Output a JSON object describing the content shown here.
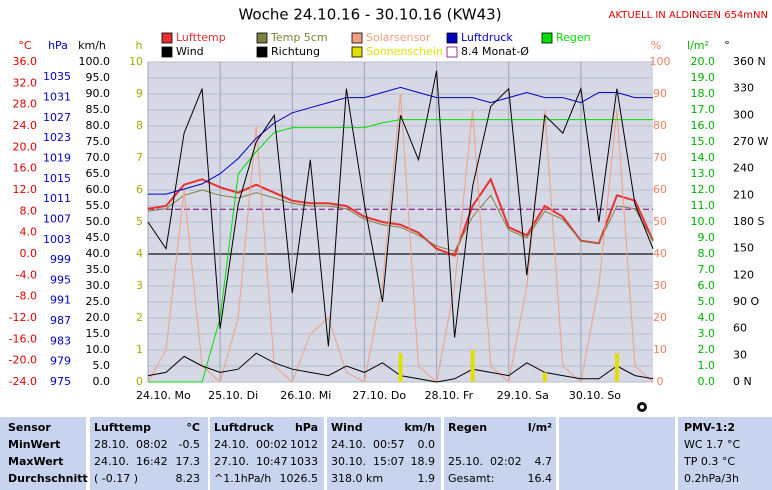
{
  "chart_data": {
    "type": "line",
    "title": "Woche 24.10.16 - 30.10.16 (KW43)",
    "subtitle": "AKTUELL IN ALDINGEN 654mNN",
    "grid": true,
    "xlim": [
      0,
      168
    ],
    "xticks": [
      {
        "value": 0,
        "label": "24.10.  Mo"
      },
      {
        "value": 24,
        "label": "25.10.  Di"
      },
      {
        "value": 48,
        "label": "26.10.  Mi"
      },
      {
        "value": 72,
        "label": "27.10.  Do"
      },
      {
        "value": 96,
        "label": "28.10.  Fr"
      },
      {
        "value": 120,
        "label": "29.10.  Sa"
      },
      {
        "value": 144,
        "label": "30.10.  So"
      }
    ],
    "axes": [
      {
        "unit": "°C",
        "color": "#e00000",
        "ylim": [
          -24,
          36
        ],
        "yticks": [
          {
            "value": 36,
            "label": "36.0"
          },
          {
            "value": 32,
            "label": "32.0"
          },
          {
            "value": 28,
            "label": "28.0"
          },
          {
            "value": 24,
            "label": "24.0"
          },
          {
            "value": 20,
            "label": "20.0"
          },
          {
            "value": 16,
            "label": "16.0"
          },
          {
            "value": 12,
            "label": "12.0"
          },
          {
            "value": 8,
            "label": "8.0"
          },
          {
            "value": 4,
            "label": "4.0"
          },
          {
            "value": 0,
            "label": "0.0"
          },
          {
            "value": -4,
            "label": "-4.0"
          },
          {
            "value": -8,
            "label": "-8.0"
          },
          {
            "value": -12,
            "label": "-12.0"
          },
          {
            "value": -16,
            "label": "-16.0"
          },
          {
            "value": -20,
            "label": "-20.0"
          },
          {
            "value": -24,
            "label": "-24.0"
          }
        ]
      },
      {
        "unit": "hPa",
        "color": "#0000c0",
        "ylim": [
          975,
          1038
        ],
        "yticks": [
          1035,
          1031,
          1027,
          1023,
          1019,
          1015,
          1011,
          1007,
          1003,
          999,
          995,
          991,
          987,
          983,
          979,
          975
        ]
      },
      {
        "unit": "km/h",
        "color": "#000000",
        "ylim": [
          0,
          100
        ],
        "yticks": [
          {
            "value": 100,
            "label": "100.0"
          },
          {
            "value": 95,
            "label": "95.0"
          },
          {
            "value": 90,
            "label": "90.0"
          },
          {
            "value": 85,
            "label": "85.0"
          },
          {
            "value": 80,
            "label": "80.0"
          },
          {
            "value": 75,
            "label": "75.0"
          },
          {
            "value": 70,
            "label": "70.0"
          },
          {
            "value": 65,
            "label": "65.0"
          },
          {
            "value": 60,
            "label": "60.0"
          },
          {
            "value": 55,
            "label": "55.0"
          },
          {
            "value": 50,
            "label": "50.0"
          },
          {
            "value": 45,
            "label": "45.0"
          },
          {
            "value": 40,
            "label": "40.0"
          },
          {
            "value": 35,
            "label": "35.0"
          },
          {
            "value": 30,
            "label": "30.0"
          },
          {
            "value": 25,
            "label": "25.0"
          },
          {
            "value": 20,
            "label": "20.0"
          },
          {
            "value": 15,
            "label": "15.0"
          },
          {
            "value": 10,
            "label": "10.0"
          },
          {
            "value": 5,
            "label": "5.0"
          },
          {
            "value": 0,
            "label": "0.0"
          }
        ]
      },
      {
        "unit": "h",
        "color": "#a8a800",
        "ylim": [
          0,
          10
        ],
        "yticks": [
          10,
          9,
          8,
          7,
          6,
          5,
          4,
          3,
          2,
          1,
          0
        ]
      },
      {
        "unit": "%",
        "color": "#f08060",
        "ylim": [
          0,
          100
        ],
        "yticks": [
          100,
          90,
          80,
          70,
          60,
          50,
          40,
          30,
          20,
          10,
          0
        ]
      },
      {
        "unit": "l/m²",
        "color": "#00b000",
        "ylim": [
          0,
          20
        ],
        "yticks": [
          {
            "value": 20,
            "label": "20.0"
          },
          {
            "value": 19,
            "label": "19.0"
          },
          {
            "value": 18,
            "label": "18.0"
          },
          {
            "value": 17,
            "label": "17.0"
          },
          {
            "value": 16,
            "label": "16.0"
          },
          {
            "value": 15,
            "label": "15.0"
          },
          {
            "value": 14,
            "label": "14.0"
          },
          {
            "value": 13,
            "label": "13.0"
          },
          {
            "value": 12,
            "label": "12.0"
          },
          {
            "value": 11,
            "label": "11.0"
          },
          {
            "value": 10,
            "label": "10.0"
          },
          {
            "value": 9,
            "label": "9.0"
          },
          {
            "value": 8,
            "label": "8.0"
          },
          {
            "value": 7,
            "label": "7.0"
          },
          {
            "value": 6,
            "label": "6.0"
          },
          {
            "value": 5,
            "label": "5.0"
          },
          {
            "value": 4,
            "label": "4.0"
          },
          {
            "value": 3,
            "label": "3.0"
          },
          {
            "value": 2,
            "label": "2.0"
          },
          {
            "value": 1,
            "label": "1.0"
          },
          {
            "value": 0,
            "label": "0.0"
          }
        ]
      },
      {
        "unit": "°",
        "color": "#000000",
        "ylim": [
          0,
          360
        ],
        "yticks": [
          {
            "value": 360,
            "label": "360 N"
          },
          330,
          300,
          {
            "value": 270,
            "label": "270 W"
          },
          240,
          210,
          {
            "value": 180,
            "label": "180 S"
          },
          150,
          120,
          {
            "value": 90,
            "label": "90 O"
          },
          60,
          30,
          {
            "value": 0,
            "label": "0 N"
          }
        ]
      }
    ],
    "x": [
      0,
      6,
      12,
      18,
      24,
      30,
      36,
      42,
      48,
      54,
      60,
      66,
      72,
      78,
      84,
      90,
      96,
      102,
      108,
      114,
      120,
      126,
      132,
      138,
      144,
      150,
      156,
      162,
      168
    ],
    "series": [
      {
        "name": "Lufttemp",
        "color": "#e83030",
        "axis": "°C",
        "values": [
          8.5,
          9,
          13,
          14,
          12.5,
          11.5,
          13,
          11.5,
          10,
          9.5,
          9.5,
          9,
          7,
          6,
          5.5,
          4,
          1,
          -0.3,
          9,
          14,
          5,
          3.5,
          9,
          7,
          2.5,
          2,
          11,
          10,
          2.5
        ]
      },
      {
        "name": "Temp 5cm",
        "color": "#808040",
        "axis": "°C",
        "values": [
          8,
          8.5,
          11,
          12,
          11,
          10.5,
          11.5,
          10.5,
          9.5,
          9,
          9,
          8.5,
          6.5,
          5.5,
          5,
          3.5,
          1.5,
          0.5,
          7,
          11,
          4.5,
          3,
          8,
          6.5,
          2.5,
          2,
          9,
          8.5,
          2.5
        ]
      },
      {
        "name": "Solarsensor",
        "color": "#f0a080",
        "axis": "%",
        "values": [
          0,
          10,
          60,
          5,
          0,
          20,
          80,
          5,
          0,
          15,
          20,
          3,
          0,
          30,
          90,
          5,
          0,
          30,
          85,
          5,
          0,
          30,
          85,
          5,
          0,
          30,
          85,
          5,
          0
        ]
      },
      {
        "name": "Luftdruck",
        "color": "#0000c0",
        "axis": "hPa",
        "values": [
          1012,
          1012,
          1013,
          1014,
          1016,
          1019,
          1023,
          1026,
          1028,
          1029,
          1030,
          1031,
          1031,
          1032,
          1033,
          1032,
          1031,
          1031,
          1031,
          1030,
          1031,
          1032,
          1031,
          1031,
          1030,
          1032,
          1032,
          1031,
          1031
        ]
      },
      {
        "name": "Regen",
        "color": "#00e000",
        "axis": "l/m²",
        "values": [
          0,
          0,
          0,
          0,
          4,
          13,
          14.4,
          15.6,
          15.9,
          15.9,
          15.9,
          15.9,
          15.9,
          16.2,
          16.4,
          16.4,
          16.4,
          16.4,
          16.4,
          16.4,
          16.4,
          16.4,
          16.4,
          16.4,
          16.4,
          16.4,
          16.4,
          16.4,
          16.4
        ]
      },
      {
        "name": "Wind",
        "color": "#000000",
        "axis": "km/h",
        "values": [
          2,
          3,
          8,
          5,
          3,
          4,
          9,
          6,
          4,
          3,
          2,
          5,
          3,
          6,
          2,
          1,
          0,
          1,
          4,
          3,
          2,
          6,
          3,
          2,
          1,
          1,
          5,
          2,
          1
        ]
      },
      {
        "name": "Richtung",
        "color": "#000000",
        "axis": "°",
        "values": [
          180,
          150,
          280,
          330,
          60,
          200,
          270,
          300,
          100,
          250,
          40,
          330,
          200,
          90,
          300,
          250,
          350,
          50,
          220,
          310,
          330,
          120,
          300,
          280,
          330,
          180,
          330,
          200,
          150
        ]
      },
      {
        "name": "Sonnenschein",
        "type": "bar",
        "color": "#e0e000",
        "axis": "h",
        "values": [
          0,
          0,
          0,
          0,
          0,
          0,
          0,
          0,
          0,
          0,
          0,
          0,
          0,
          0,
          0.9,
          0,
          0,
          0,
          1.0,
          0,
          0,
          0,
          0.3,
          0,
          0,
          0,
          0.9,
          0,
          0
        ]
      }
    ],
    "monthly_avg": {
      "label": "8.4 Monat-Ø",
      "value": 8.4,
      "axis": "°C",
      "color": "#800080"
    }
  },
  "table": {
    "header": [
      "Sensor",
      "Lufttemp",
      "°C",
      "Luftdruck",
      "hPa",
      "Wind",
      "km/h",
      "Regen",
      "l/m²",
      "PMV-1:2"
    ],
    "rows": [
      [
        "MinWert",
        "28.10.  08:02",
        "-0.5",
        "24.10.  00:02",
        "1012",
        "24.10.  00:57",
        "0.0",
        null,
        null,
        "WC 1.7 °C"
      ],
      [
        "MaxWert",
        "24.10.  16:42",
        "17.3",
        "27.10.  10:47",
        "1033",
        "30.10.  15:07",
        "18.9",
        "25.10.  02:02",
        "4.7",
        "TP 0.3 °C"
      ],
      [
        "Durchschnitt",
        "( -0.17 )",
        "8.23",
        "^1.1hPa/h",
        "1026.5",
        "318.0 km",
        "1.9",
        "Gesamt:",
        "16.4",
        "0.2hPa/3h"
      ]
    ]
  }
}
